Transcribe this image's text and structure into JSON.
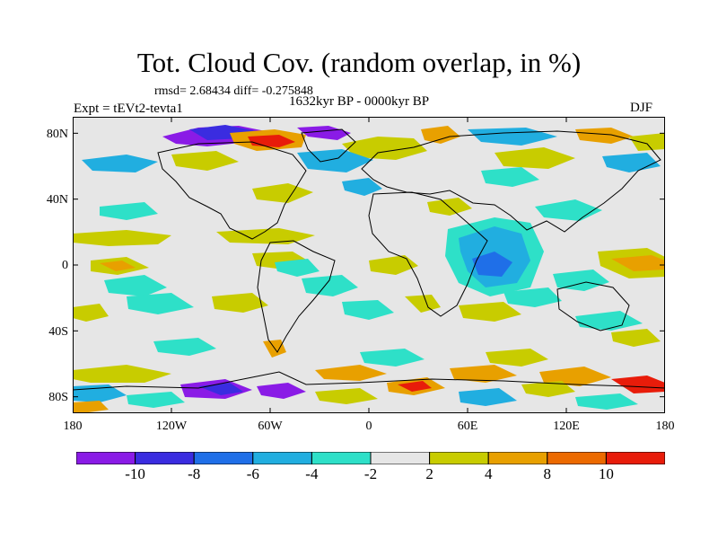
{
  "title": "Tot. Cloud Cov. (random overlap, in %)",
  "stats_text": "rmsd= 2.68434 diff= -0.275848",
  "experiment_text": "Expt = tEVt2-tevta1",
  "period_text": "1632kyr BP - 0000kyr BP",
  "season_text": "DJF",
  "latitude_labels": [
    "80N",
    "40N",
    "0",
    "40S",
    "80S"
  ],
  "longitude_labels": [
    "180",
    "120W",
    "60W",
    "0",
    "60E",
    "120E",
    "180"
  ],
  "colorbar": {
    "labels": [
      "-10",
      "-8",
      "-6",
      "-4",
      "-2",
      "2",
      "4",
      "8",
      "10"
    ],
    "colors": [
      "#8a1be6",
      "#3a2ce0",
      "#1f6fe8",
      "#21aee0",
      "#2ee0c8",
      "#e6e6e6",
      "#c8cc00",
      "#e8a000",
      "#ec6a00",
      "#e81c0a"
    ]
  },
  "colors": {
    "background": "#ffffff",
    "map_fill": "#e6e6e6",
    "coastline": "#000000"
  },
  "map": {
    "projection": "cylindrical equidistant",
    "longitude_range": [
      -180,
      180
    ],
    "latitude_range": [
      -90,
      90
    ]
  }
}
